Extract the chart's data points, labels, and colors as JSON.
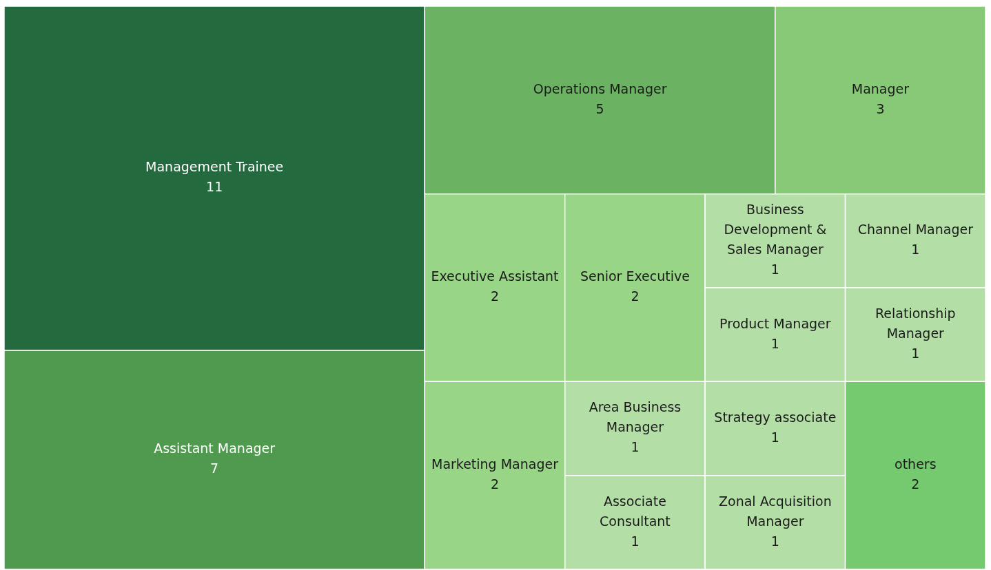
{
  "chart_data": {
    "type": "other",
    "categories": [
      "Management Trainee",
      "Assistant Manager",
      "Operations Manager",
      "Manager",
      "Executive Assistant",
      "Marketing Manager",
      "Senior Executive",
      "Area Business Manager",
      "Associate Consultant",
      "Business Development & Sales Manager",
      "Channel Manager",
      "Product Manager",
      "Relationship Manager",
      "Strategy associate",
      "Zonal Acquisition Manager",
      "others"
    ],
    "values": [
      11,
      7,
      5,
      3,
      2,
      2,
      2,
      1,
      1,
      1,
      1,
      1,
      1,
      1,
      1,
      2
    ],
    "colors": [
      "#236b3e",
      "#4f9a4f",
      "#6bb362",
      "#88c977",
      "#98d587",
      "#98d587",
      "#98d587",
      "#b3dfa6",
      "#b3dfa6",
      "#b3dfa6",
      "#b3dfa6",
      "#b3dfa6",
      "#b3dfa6",
      "#b3dfa6",
      "#b3dfa6",
      "#75c96f"
    ],
    "data_labels": true
  }
}
